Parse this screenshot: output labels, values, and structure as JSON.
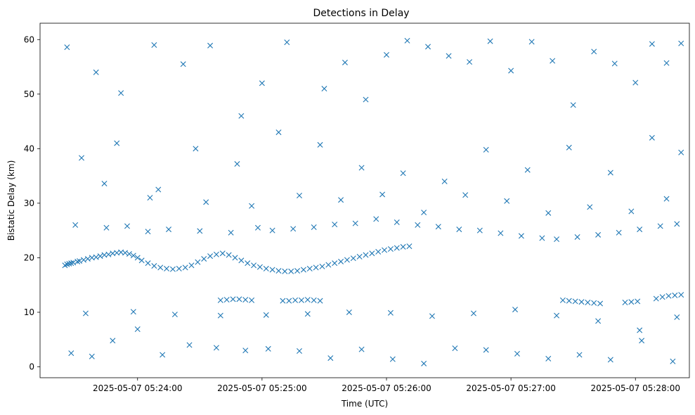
{
  "chart_data": {
    "type": "scatter",
    "title": "Detections in Delay",
    "xlabel": "Time (UTC)",
    "ylabel": "Bistatic Delay (km)",
    "marker": "x",
    "color": "#1f77b4",
    "xlim": [
      "2025-05-07 05:23:13",
      "2025-05-07 05:28:26"
    ],
    "ylim": [
      -2,
      63
    ],
    "x_ticks": [
      "2025-05-07 05:24:00",
      "2025-05-07 05:25:00",
      "2025-05-07 05:26:00",
      "2025-05-07 05:27:00",
      "2025-05-07 05:28:00"
    ],
    "x_tick_labels": [
      "2025-05-07 05:24:00",
      "2025-05-07 05:25:00",
      "2025-05-07 05:26:00",
      "2025-05-07 05:27:00",
      "2025-05-07 05:28:00"
    ],
    "y_ticks": [
      0,
      10,
      20,
      30,
      40,
      50,
      60
    ],
    "y_tick_labels": [
      "0",
      "10",
      "20",
      "30",
      "40",
      "50",
      "60"
    ],
    "grid": false,
    "series": [
      {
        "x": [
          "2025-05-07 05:23:25",
          "2025-05-07 05:23:26",
          "2025-05-07 05:23:27",
          "2025-05-07 05:23:28",
          "2025-05-07 05:23:29",
          "2025-05-07 05:23:31",
          "2025-05-07 05:23:32",
          "2025-05-07 05:23:34",
          "2025-05-07 05:23:36",
          "2025-05-07 05:23:38",
          "2025-05-07 05:23:40",
          "2025-05-07 05:23:42",
          "2025-05-07 05:23:44",
          "2025-05-07 05:23:46",
          "2025-05-07 05:23:48",
          "2025-05-07 05:23:50",
          "2025-05-07 05:23:52",
          "2025-05-07 05:23:54",
          "2025-05-07 05:23:56",
          "2025-05-07 05:23:58",
          "2025-05-07 05:24:00",
          "2025-05-07 05:24:02",
          "2025-05-07 05:24:05",
          "2025-05-07 05:24:08",
          "2025-05-07 05:24:11",
          "2025-05-07 05:24:14",
          "2025-05-07 05:24:17",
          "2025-05-07 05:24:20",
          "2025-05-07 05:24:23",
          "2025-05-07 05:24:26",
          "2025-05-07 05:24:29",
          "2025-05-07 05:24:32",
          "2025-05-07 05:24:35",
          "2025-05-07 05:24:38",
          "2025-05-07 05:24:41",
          "2025-05-07 05:24:44",
          "2025-05-07 05:24:47",
          "2025-05-07 05:24:50",
          "2025-05-07 05:24:53",
          "2025-05-07 05:24:56",
          "2025-05-07 05:24:59",
          "2025-05-07 05:25:02",
          "2025-05-07 05:25:05",
          "2025-05-07 05:25:08",
          "2025-05-07 05:25:11",
          "2025-05-07 05:25:14",
          "2025-05-07 05:25:17",
          "2025-05-07 05:25:20",
          "2025-05-07 05:25:23",
          "2025-05-07 05:25:26",
          "2025-05-07 05:25:29",
          "2025-05-07 05:25:32",
          "2025-05-07 05:25:35",
          "2025-05-07 05:25:38",
          "2025-05-07 05:25:41",
          "2025-05-07 05:25:44",
          "2025-05-07 05:25:47",
          "2025-05-07 05:25:50",
          "2025-05-07 05:25:53",
          "2025-05-07 05:25:56",
          "2025-05-07 05:25:59",
          "2025-05-07 05:26:02",
          "2025-05-07 05:26:05",
          "2025-05-07 05:26:08",
          "2025-05-07 05:26:11",
          "2025-05-07 05:24:40",
          "2025-05-07 05:24:43",
          "2025-05-07 05:24:46",
          "2025-05-07 05:24:49",
          "2025-05-07 05:24:52",
          "2025-05-07 05:24:55",
          "2025-05-07 05:25:10",
          "2025-05-07 05:25:13",
          "2025-05-07 05:25:16",
          "2025-05-07 05:25:19",
          "2025-05-07 05:25:22",
          "2025-05-07 05:25:25",
          "2025-05-07 05:25:28",
          "2025-05-07 05:27:25",
          "2025-05-07 05:27:28",
          "2025-05-07 05:27:31",
          "2025-05-07 05:27:34",
          "2025-05-07 05:27:37",
          "2025-05-07 05:27:40",
          "2025-05-07 05:27:43",
          "2025-05-07 05:27:55",
          "2025-05-07 05:27:58",
          "2025-05-07 05:28:01",
          "2025-05-07 05:28:10",
          "2025-05-07 05:28:13",
          "2025-05-07 05:28:16",
          "2025-05-07 05:28:19",
          "2025-05-07 05:28:22",
          "2025-05-07 05:23:30",
          "2025-05-07 05:23:45",
          "2025-05-07 05:23:55",
          "2025-05-07 05:24:05",
          "2025-05-07 05:24:15",
          "2025-05-07 05:24:30",
          "2025-05-07 05:24:45",
          "2025-05-07 05:24:58",
          "2025-05-07 05:25:05",
          "2025-05-07 05:25:15",
          "2025-05-07 05:25:25",
          "2025-05-07 05:25:35",
          "2025-05-07 05:25:45",
          "2025-05-07 05:25:55",
          "2025-05-07 05:26:05",
          "2025-05-07 05:26:15",
          "2025-05-07 05:26:25",
          "2025-05-07 05:26:35",
          "2025-05-07 05:26:45",
          "2025-05-07 05:26:55",
          "2025-05-07 05:27:05",
          "2025-05-07 05:27:15",
          "2025-05-07 05:27:22",
          "2025-05-07 05:27:32",
          "2025-05-07 05:27:42",
          "2025-05-07 05:27:52",
          "2025-05-07 05:28:02",
          "2025-05-07 05:28:12",
          "2025-05-07 05:28:20",
          "2025-05-07 05:23:26",
          "2025-05-07 05:23:40",
          "2025-05-07 05:23:52",
          "2025-05-07 05:24:08",
          "2025-05-07 05:24:22",
          "2025-05-07 05:24:35",
          "2025-05-07 05:24:50",
          "2025-05-07 05:25:00",
          "2025-05-07 05:25:12",
          "2025-05-07 05:25:30",
          "2025-05-07 05:25:40",
          "2025-05-07 05:25:50",
          "2025-05-07 05:26:00",
          "2025-05-07 05:26:10",
          "2025-05-07 05:26:20",
          "2025-05-07 05:26:30",
          "2025-05-07 05:26:40",
          "2025-05-07 05:26:50",
          "2025-05-07 05:27:00",
          "2025-05-07 05:27:10",
          "2025-05-07 05:27:20",
          "2025-05-07 05:27:30",
          "2025-05-07 05:27:40",
          "2025-05-07 05:27:50",
          "2025-05-07 05:28:00",
          "2025-05-07 05:28:08",
          "2025-05-07 05:28:15",
          "2025-05-07 05:28:22",
          "2025-05-07 05:23:28",
          "2025-05-07 05:23:38",
          "2025-05-07 05:23:48",
          "2025-05-07 05:24:00",
          "2025-05-07 05:24:12",
          "2025-05-07 05:24:25",
          "2025-05-07 05:24:38",
          "2025-05-07 05:24:52",
          "2025-05-07 05:25:03",
          "2025-05-07 05:25:18",
          "2025-05-07 05:25:33",
          "2025-05-07 05:25:48",
          "2025-05-07 05:26:03",
          "2025-05-07 05:26:18",
          "2025-05-07 05:26:33",
          "2025-05-07 05:26:48",
          "2025-05-07 05:27:03",
          "2025-05-07 05:27:18",
          "2025-05-07 05:27:33",
          "2025-05-07 05:27:48",
          "2025-05-07 05:28:03",
          "2025-05-07 05:28:18",
          "2025-05-07 05:23:33",
          "2025-05-07 05:23:50",
          "2025-05-07 05:24:10",
          "2025-05-07 05:24:28",
          "2025-05-07 05:24:48",
          "2025-05-07 05:25:08",
          "2025-05-07 05:25:28",
          "2025-05-07 05:25:48",
          "2025-05-07 05:26:08",
          "2025-05-07 05:26:28",
          "2025-05-07 05:26:48",
          "2025-05-07 05:27:08",
          "2025-05-07 05:27:28",
          "2025-05-07 05:27:48",
          "2025-05-07 05:28:08",
          "2025-05-07 05:28:22",
          "2025-05-07 05:23:35",
          "2025-05-07 05:23:58",
          "2025-05-07 05:24:18",
          "2025-05-07 05:24:40",
          "2025-05-07 05:25:02",
          "2025-05-07 05:25:22",
          "2025-05-07 05:25:42",
          "2025-05-07 05:26:02",
          "2025-05-07 05:26:22",
          "2025-05-07 05:26:42",
          "2025-05-07 05:27:02",
          "2025-05-07 05:27:22",
          "2025-05-07 05:27:42",
          "2025-05-07 05:28:02",
          "2025-05-07 05:28:20",
          "2025-05-07 05:23:44",
          "2025-05-07 05:24:06",
          "2025-05-07 05:24:33",
          "2025-05-07 05:24:55",
          "2025-05-07 05:25:18",
          "2025-05-07 05:25:38",
          "2025-05-07 05:25:58",
          "2025-05-07 05:26:18",
          "2025-05-07 05:26:38",
          "2025-05-07 05:26:58",
          "2025-05-07 05:27:18",
          "2025-05-07 05:27:38",
          "2025-05-07 05:27:58",
          "2025-05-07 05:28:15"
        ],
        "y": [
          18.6,
          18.8,
          18.9,
          19.0,
          19.1,
          19.3,
          19.4,
          19.6,
          19.8,
          20.0,
          20.1,
          20.3,
          20.5,
          20.6,
          20.8,
          20.9,
          21.0,
          20.9,
          20.7,
          20.4,
          20.0,
          19.5,
          19.0,
          18.5,
          18.2,
          18.0,
          17.9,
          18.0,
          18.2,
          18.6,
          19.2,
          19.8,
          20.3,
          20.6,
          20.8,
          20.5,
          20.0,
          19.5,
          19.0,
          18.6,
          18.3,
          18.0,
          17.8,
          17.6,
          17.5,
          17.5,
          17.6,
          17.8,
          18.0,
          18.2,
          18.4,
          18.7,
          19.0,
          19.3,
          19.6,
          19.9,
          20.2,
          20.5,
          20.8,
          21.1,
          21.4,
          21.6,
          21.8,
          22.0,
          22.1,
          12.2,
          12.3,
          12.4,
          12.4,
          12.3,
          12.2,
          12.1,
          12.1,
          12.2,
          12.2,
          12.3,
          12.2,
          12.1,
          12.2,
          12.1,
          12.0,
          11.9,
          11.8,
          11.7,
          11.6,
          11.8,
          11.9,
          12.0,
          12.5,
          12.8,
          13.0,
          13.1,
          13.2,
          26.0,
          25.5,
          25.8,
          24.8,
          25.2,
          24.9,
          24.6,
          25.5,
          25.0,
          25.3,
          25.6,
          26.1,
          26.3,
          27.1,
          26.5,
          26.0,
          25.7,
          25.2,
          25.0,
          24.5,
          24.0,
          23.6,
          23.4,
          23.8,
          24.2,
          24.6,
          25.2,
          25.8,
          26.2,
          58.6,
          54.0,
          50.2,
          59.0,
          55.5,
          58.9,
          46.0,
          52.0,
          59.5,
          51.0,
          55.8,
          49.0,
          57.2,
          59.8,
          58.7,
          57.0,
          55.9,
          59.7,
          54.3,
          59.6,
          56.1,
          48.0,
          57.8,
          55.6,
          52.1,
          59.2,
          55.7,
          59.3,
          2.5,
          1.9,
          4.8,
          6.9,
          2.2,
          4.0,
          3.5,
          3.0,
          3.3,
          2.9,
          1.6,
          3.2,
          1.4,
          0.6,
          3.4,
          3.1,
          2.4,
          1.5,
          2.2,
          1.3,
          4.8,
          1.0,
          38.3,
          41.0,
          32.5,
          40.0,
          37.2,
          43.0,
          40.7,
          36.5,
          35.5,
          34.0,
          39.8,
          36.1,
          40.2,
          35.6,
          42.0,
          39.3,
          9.8,
          10.1,
          9.6,
          9.4,
          9.5,
          9.7,
          10.0,
          9.9,
          9.3,
          9.8,
          10.5,
          9.4,
          8.4,
          6.7,
          9.1,
          33.6,
          31.0,
          30.2,
          29.5,
          31.4,
          30.6,
          31.6,
          28.3,
          31.5,
          30.4,
          28.2,
          29.3,
          28.5,
          30.8
        ]
      }
    ]
  }
}
